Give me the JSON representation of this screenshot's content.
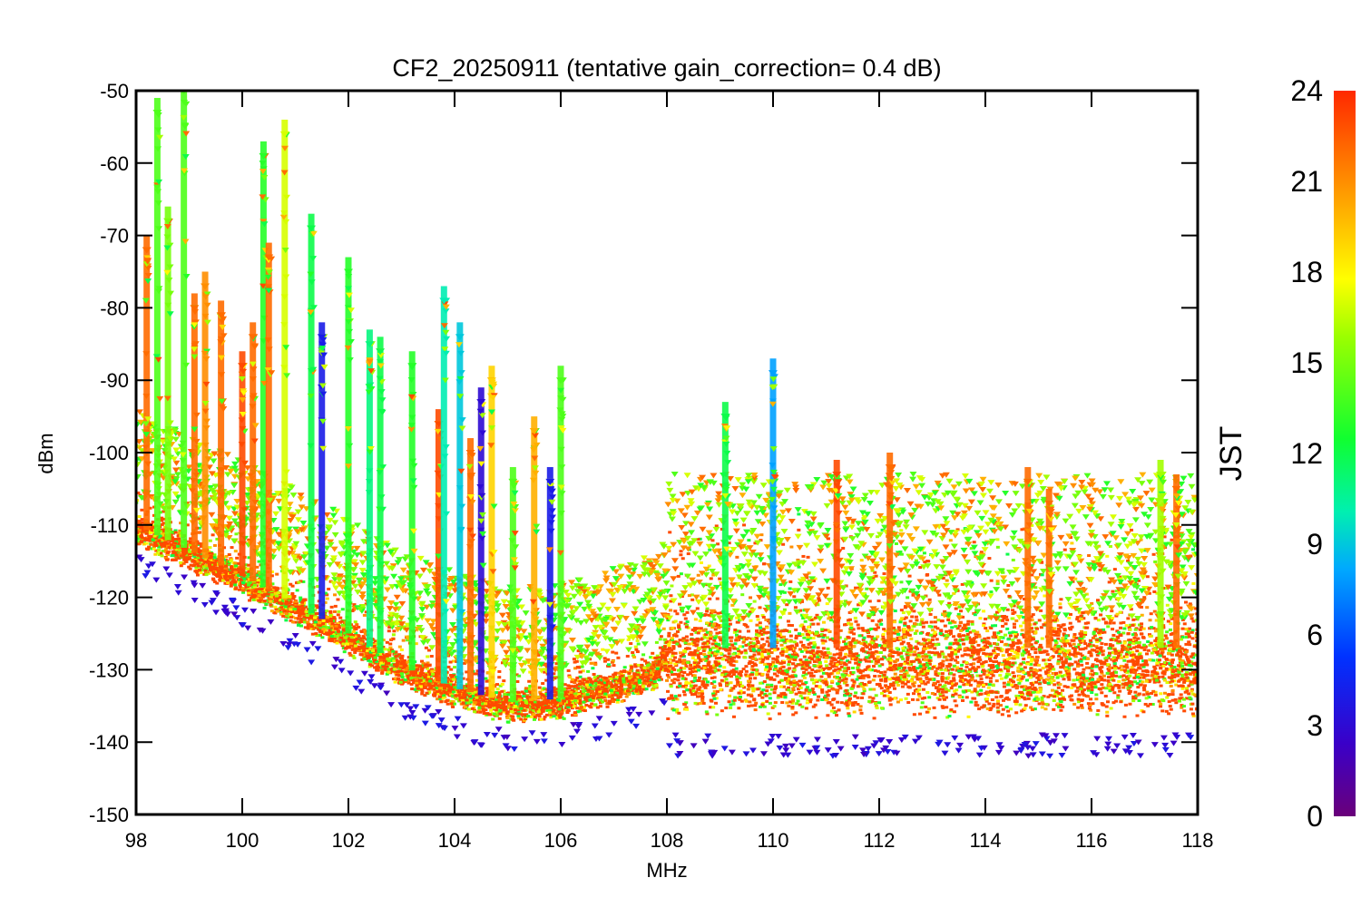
{
  "chart_data": {
    "type": "scatter",
    "title": "CF2_20250911 (tentative gain_correction=  0.4 dB)",
    "xlabel": "MHz",
    "ylabel": "dBm",
    "xlim": [
      98,
      118
    ],
    "ylim": [
      -150,
      -50
    ],
    "xticks": [
      "98",
      "100",
      "102",
      "104",
      "106",
      "108",
      "110",
      "112",
      "114",
      "116",
      "118"
    ],
    "yticks": [
      "-50",
      "-60",
      "-70",
      "-80",
      "-90",
      "-100",
      "-110",
      "-120",
      "-130",
      "-140",
      "-150"
    ],
    "colorbar": {
      "label": "JST",
      "range": [
        0,
        24
      ],
      "ticks": [
        "24",
        "21",
        "18",
        "15",
        "12",
        "9",
        "6",
        "3",
        "0"
      ],
      "colormap": "rainbow"
    },
    "noise_floor": [
      [
        98,
        -110
      ],
      [
        99,
        -113.5
      ],
      [
        100,
        -117
      ],
      [
        101,
        -121
      ],
      [
        102,
        -125
      ],
      [
        103,
        -129.5
      ],
      [
        104,
        -132.5
      ],
      [
        105,
        -134.5
      ],
      [
        106,
        -134
      ],
      [
        107,
        -132
      ],
      [
        107.8,
        -130
      ],
      [
        108,
        -127
      ],
      [
        110,
        -127
      ],
      [
        112,
        -127
      ],
      [
        114,
        -127
      ],
      [
        116,
        -127
      ],
      [
        118,
        -127
      ]
    ],
    "peaks": [
      {
        "x": 98.2,
        "top": -72,
        "jst": 22
      },
      {
        "x": 98.4,
        "top": -53,
        "jst": 14
      },
      {
        "x": 98.6,
        "top": -68,
        "jst": 15
      },
      {
        "x": 98.9,
        "top": -50,
        "jst": 14
      },
      {
        "x": 99.1,
        "top": -80,
        "jst": 22
      },
      {
        "x": 99.3,
        "top": -77,
        "jst": 21
      },
      {
        "x": 99.6,
        "top": -81,
        "jst": 22
      },
      {
        "x": 100.0,
        "top": -88,
        "jst": 23
      },
      {
        "x": 100.2,
        "top": -84,
        "jst": 22
      },
      {
        "x": 100.4,
        "top": -59,
        "jst": 13
      },
      {
        "x": 100.5,
        "top": -73,
        "jst": 22
      },
      {
        "x": 100.8,
        "top": -56,
        "jst": 17
      },
      {
        "x": 101.3,
        "top": -69,
        "jst": 12
      },
      {
        "x": 101.5,
        "top": -84,
        "jst": 4
      },
      {
        "x": 102.0,
        "top": -75,
        "jst": 13
      },
      {
        "x": 102.4,
        "top": -85,
        "jst": 11
      },
      {
        "x": 102.6,
        "top": -86,
        "jst": 12
      },
      {
        "x": 103.2,
        "top": -88,
        "jst": 13
      },
      {
        "x": 103.7,
        "top": -96,
        "jst": 23
      },
      {
        "x": 103.8,
        "top": -79,
        "jst": 10
      },
      {
        "x": 104.1,
        "top": -84,
        "jst": 9
      },
      {
        "x": 104.3,
        "top": -100,
        "jst": 22
      },
      {
        "x": 104.5,
        "top": -93,
        "jst": 3
      },
      {
        "x": 104.7,
        "top": -90,
        "jst": 19
      },
      {
        "x": 105.1,
        "top": -104,
        "jst": 14
      },
      {
        "x": 105.5,
        "top": -97,
        "jst": 20
      },
      {
        "x": 105.8,
        "top": -104,
        "jst": 4
      },
      {
        "x": 106.0,
        "top": -90,
        "jst": 14
      },
      {
        "x": 109.1,
        "top": -95,
        "jst": 12
      },
      {
        "x": 110.0,
        "top": -89,
        "jst": 8
      },
      {
        "x": 111.2,
        "top": -103,
        "jst": 23
      },
      {
        "x": 112.2,
        "top": -102,
        "jst": 22
      },
      {
        "x": 114.8,
        "top": -104,
        "jst": 22
      },
      {
        "x": 115.2,
        "top": -107,
        "jst": 22
      },
      {
        "x": 117.3,
        "top": -103,
        "jst": 16
      },
      {
        "x": 117.6,
        "top": -105,
        "jst": 22
      }
    ],
    "minimum_trace_jst": 2
  }
}
